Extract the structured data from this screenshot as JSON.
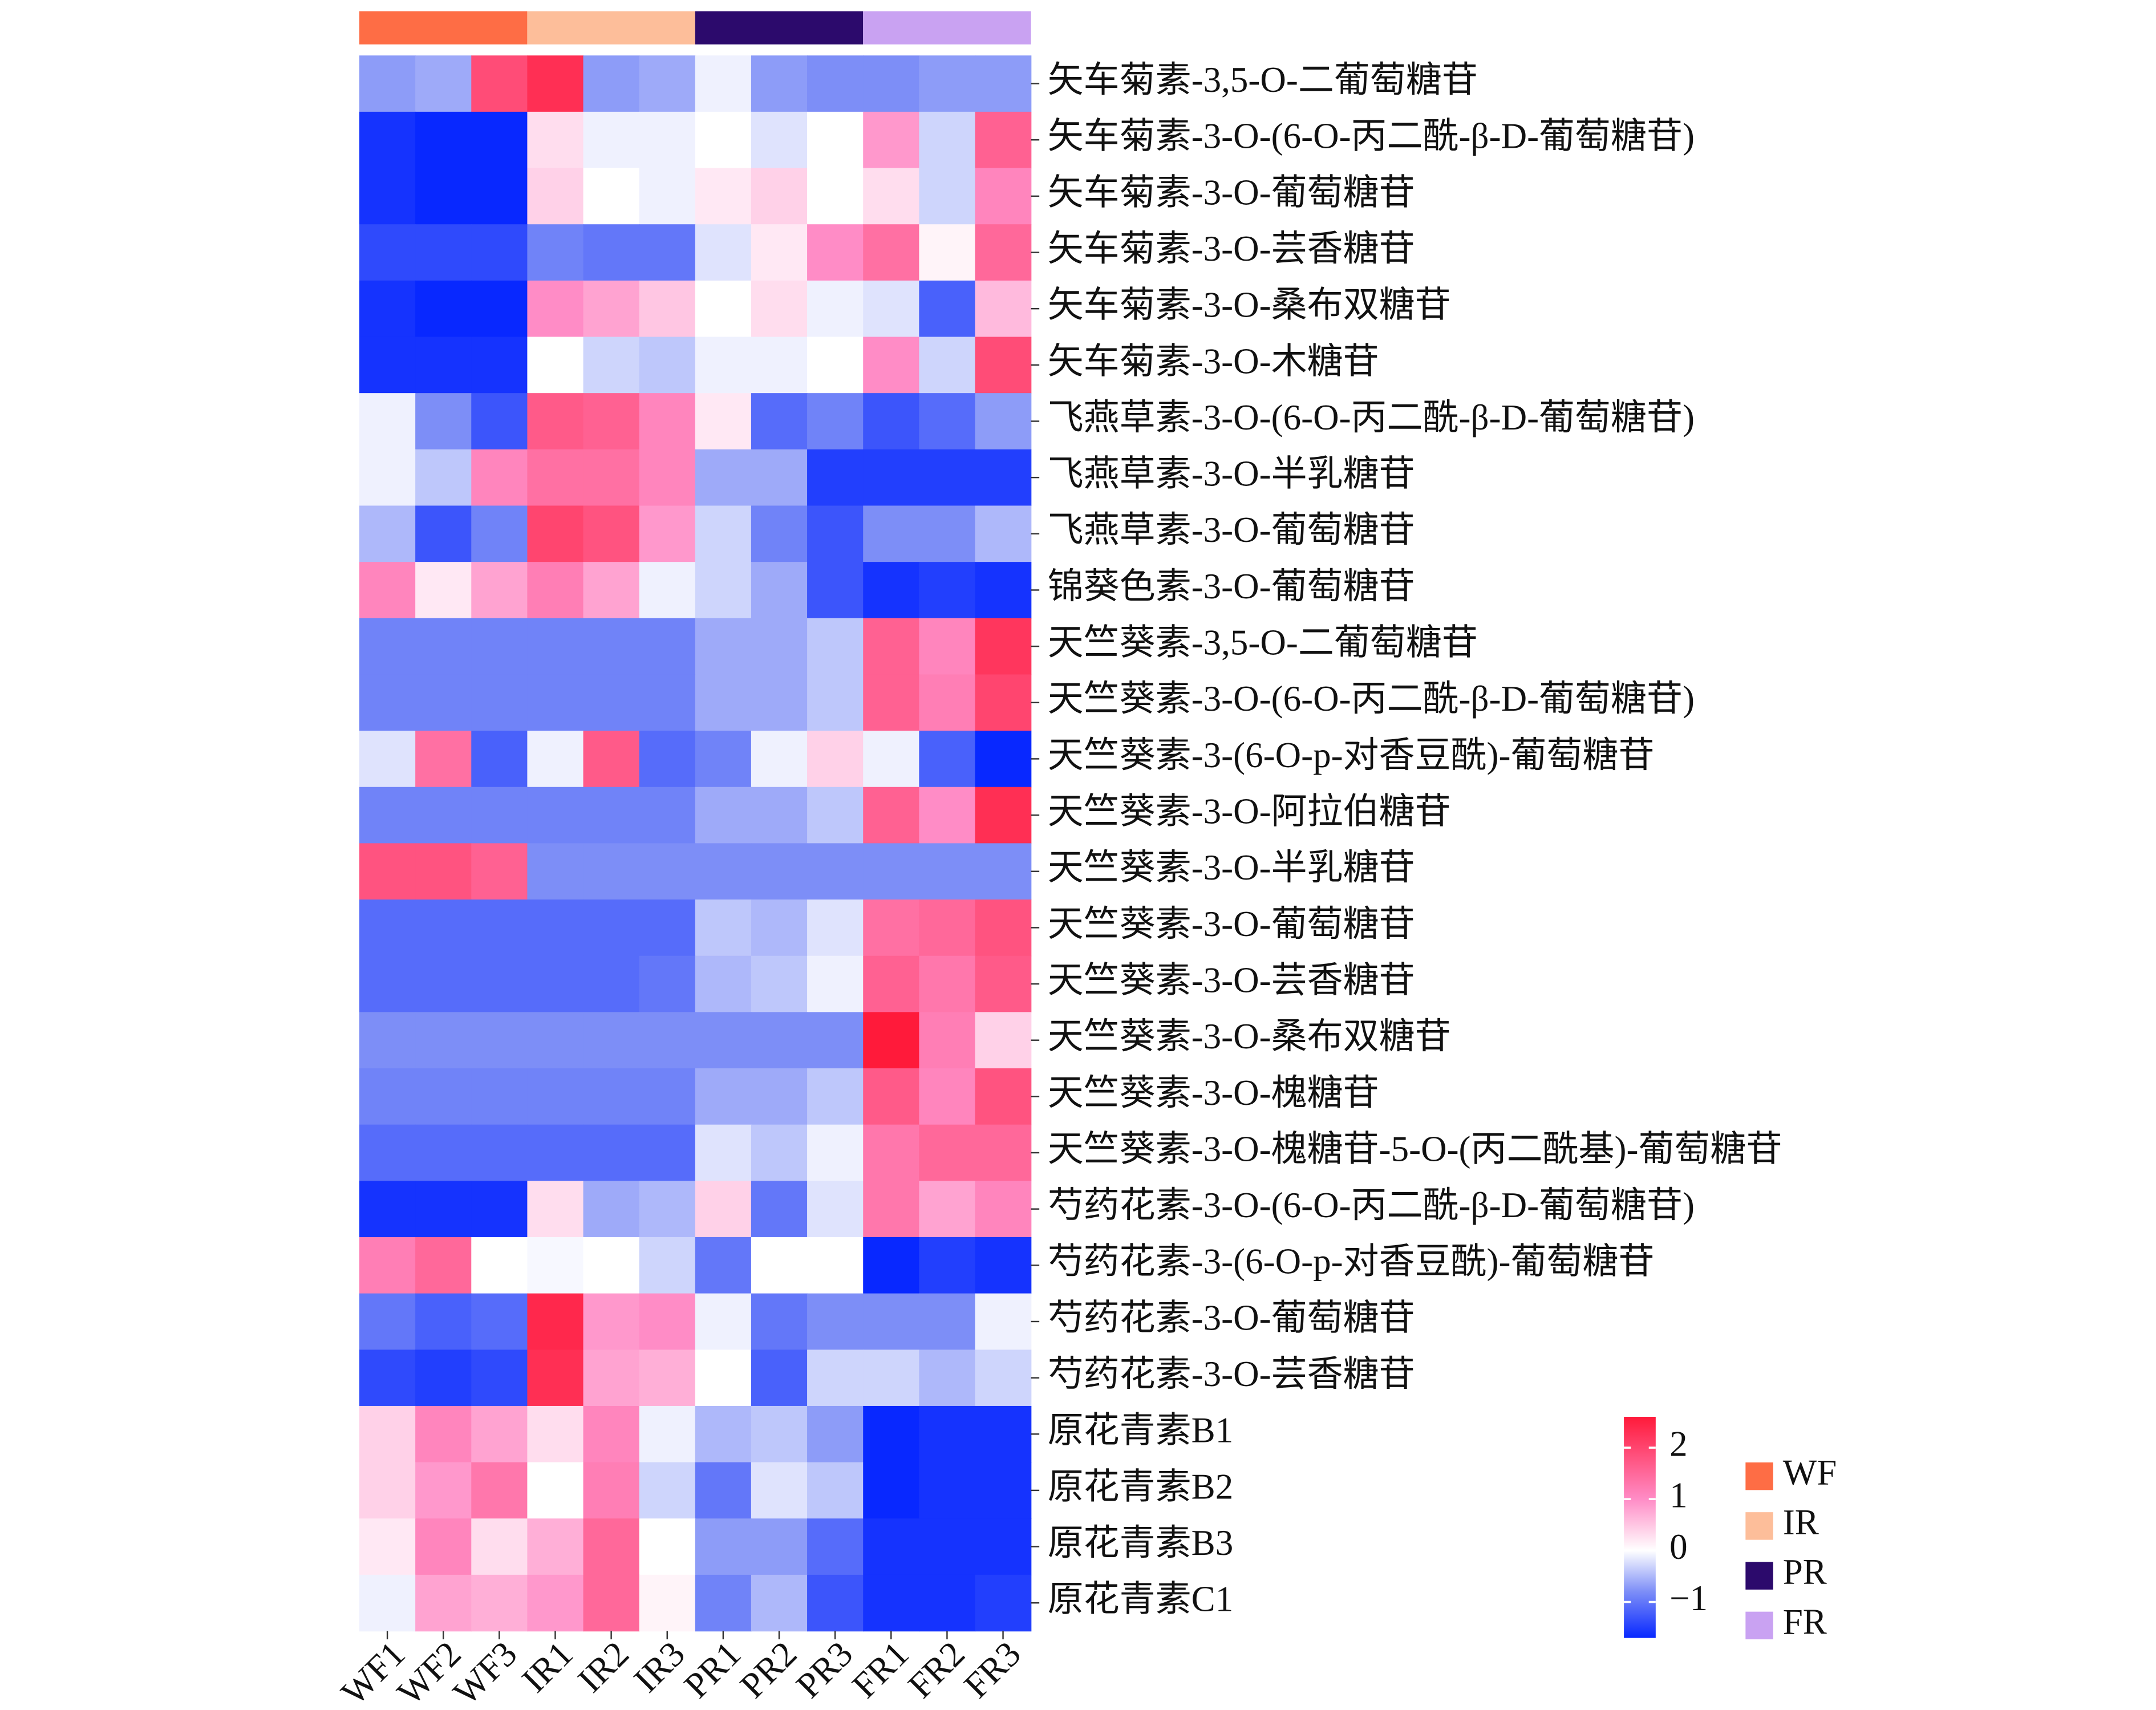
{
  "chart_data": {
    "type": "heatmap",
    "columns": [
      "WF1",
      "WF2",
      "WF3",
      "IR1",
      "IR2",
      "IR3",
      "PR1",
      "PR2",
      "PR3",
      "FR1",
      "FR2",
      "FR3"
    ],
    "rows": [
      "矢车菊素-3,5-O-二葡萄糖苷",
      "矢车菊素-3-O-(6-O-丙二酰-β-D-葡萄糖苷)",
      "矢车菊素-3-O-葡萄糖苷",
      "矢车菊素-3-O-芸香糖苷",
      "矢车菊素-3-O-桑布双糖苷",
      "矢车菊素-3-O-木糖苷",
      "飞燕草素-3-O-(6-O-丙二酰-β-D-葡萄糖苷)",
      "飞燕草素-3-O-半乳糖苷",
      "飞燕草素-3-O-葡萄糖苷",
      "锦葵色素-3-O-葡萄糖苷",
      "天竺葵素-3,5-O-二葡萄糖苷",
      "天竺葵素-3-O-(6-O-丙二酰-β-D-葡萄糖苷)",
      "天竺葵素-3-(6-O-p-对香豆酰)-葡萄糖苷",
      "天竺葵素-3-O-阿拉伯糖苷",
      "天竺葵素-3-O-半乳糖苷",
      "天竺葵素-3-O-葡萄糖苷",
      "天竺葵素-3-O-芸香糖苷",
      "天竺葵素-3-O-桑布双糖苷",
      "天竺葵素-3-O-槐糖苷",
      "天竺葵素-3-O-槐糖苷-5-O-(丙二酰基)-葡萄糖苷",
      "芍药花素-3-O-(6-O-丙二酰-β-D-葡萄糖苷)",
      "芍药花素-3-(6-O-p-对香豆酰)-葡萄糖苷",
      "芍药花素-3-O-葡萄糖苷",
      "芍药花素-3-O-芸香糖苷",
      "原花青素B1",
      "原花青素B2",
      "原花青素B3",
      "原花青素C1"
    ],
    "values": [
      [
        -0.7,
        -0.6,
        1.9,
        2.3,
        -0.7,
        -0.6,
        -0.1,
        -0.7,
        -0.8,
        -0.8,
        -0.7,
        -0.7
      ],
      [
        -1.6,
        -1.7,
        -1.7,
        0.3,
        -0.1,
        -0.1,
        0,
        -0.2,
        0,
        0.9,
        -0.3,
        1.6
      ],
      [
        -1.6,
        -1.7,
        -1.7,
        0.4,
        0,
        -0.1,
        0.2,
        0.4,
        0,
        0.3,
        -0.3,
        1.1
      ],
      [
        -1.4,
        -1.4,
        -1.4,
        -0.9,
        -1.0,
        -1.0,
        -0.2,
        0.2,
        1.0,
        1.4,
        0.1,
        1.5
      ],
      [
        -1.6,
        -1.7,
        -1.7,
        1.0,
        0.8,
        0.5,
        0,
        0.3,
        -0.1,
        -0.2,
        -1.2,
        0.6
      ],
      [
        -1.6,
        -1.6,
        -1.6,
        0,
        -0.3,
        -0.4,
        -0.1,
        -0.1,
        0,
        1.0,
        -0.3,
        1.9
      ],
      [
        -0.1,
        -0.8,
        -1.3,
        1.7,
        1.6,
        1.1,
        0.2,
        -1.1,
        -0.9,
        -1.3,
        -1.1,
        -0.7
      ],
      [
        -0.1,
        -0.4,
        1.1,
        1.4,
        1.4,
        1.1,
        -0.6,
        -0.6,
        -1.5,
        -1.5,
        -1.5,
        -1.5
      ],
      [
        -0.5,
        -1.3,
        -0.9,
        2.0,
        1.8,
        0.9,
        -0.3,
        -0.9,
        -1.3,
        -0.8,
        -0.8,
        -0.5
      ],
      [
        1.1,
        0.2,
        0.8,
        1.2,
        0.8,
        -0.1,
        -0.3,
        -0.6,
        -1.3,
        -1.6,
        -1.5,
        -1.6
      ],
      [
        -0.9,
        -0.9,
        -0.9,
        -0.9,
        -0.9,
        -0.9,
        -0.6,
        -0.6,
        -0.4,
        1.6,
        1.1,
        2.2
      ],
      [
        -0.9,
        -0.9,
        -0.9,
        -0.9,
        -0.9,
        -0.9,
        -0.6,
        -0.6,
        -0.4,
        1.6,
        1.2,
        2.0
      ],
      [
        -0.2,
        1.4,
        -1.2,
        -0.1,
        1.7,
        -1.1,
        -0.9,
        -0.1,
        0.4,
        -0.1,
        -1.2,
        -1.7
      ],
      [
        -0.9,
        -0.9,
        -0.9,
        -0.9,
        -0.9,
        -0.9,
        -0.6,
        -0.6,
        -0.4,
        1.6,
        1.0,
        2.3
      ],
      [
        1.8,
        1.8,
        1.6,
        -0.8,
        -0.8,
        -0.8,
        -0.8,
        -0.8,
        -0.8,
        -0.8,
        -0.8,
        -0.8
      ],
      [
        -1.1,
        -1.1,
        -1.1,
        -1.1,
        -1.1,
        -1.1,
        -0.4,
        -0.5,
        -0.2,
        1.4,
        1.5,
        1.8
      ],
      [
        -1.1,
        -1.1,
        -1.1,
        -1.1,
        -1.1,
        -1.0,
        -0.5,
        -0.4,
        -0.1,
        1.6,
        1.3,
        1.7
      ],
      [
        -0.8,
        -0.8,
        -0.8,
        -0.8,
        -0.8,
        -0.8,
        -0.8,
        -0.8,
        -0.8,
        2.6,
        1.2,
        0.4
      ],
      [
        -0.9,
        -0.9,
        -0.9,
        -0.9,
        -0.9,
        -0.9,
        -0.6,
        -0.6,
        -0.4,
        1.7,
        1.1,
        1.8
      ],
      [
        -1.1,
        -1.1,
        -1.1,
        -1.1,
        -1.1,
        -1.1,
        -0.2,
        -0.4,
        -0.1,
        1.3,
        1.5,
        1.5
      ],
      [
        -1.6,
        -1.6,
        -1.6,
        0.3,
        -0.6,
        -0.5,
        0.4,
        -1.0,
        -0.2,
        1.3,
        0.8,
        1.1
      ],
      [
        1.2,
        1.5,
        0,
        -0.05,
        0,
        -0.3,
        -1.0,
        0,
        0,
        -1.7,
        -1.5,
        -1.6
      ],
      [
        -1.0,
        -1.2,
        -1.1,
        2.4,
        0.9,
        1.0,
        -0.1,
        -1.0,
        -0.8,
        -0.8,
        -0.8,
        -0.1
      ],
      [
        -1.4,
        -1.5,
        -1.4,
        2.3,
        0.8,
        0.7,
        0,
        -1.2,
        -0.3,
        -0.3,
        -0.5,
        -0.3
      ],
      [
        0.4,
        1.1,
        0.8,
        0.3,
        1.1,
        -0.1,
        -0.5,
        -0.4,
        -0.7,
        -1.7,
        -1.6,
        -1.6
      ],
      [
        0.4,
        0.9,
        1.3,
        0,
        1.2,
        -0.3,
        -1.0,
        -0.2,
        -0.4,
        -1.7,
        -1.6,
        -1.6
      ],
      [
        0.2,
        1.1,
        0.3,
        0.7,
        1.5,
        0,
        -0.7,
        -0.7,
        -1.1,
        -1.6,
        -1.6,
        -1.6
      ],
      [
        -0.1,
        0.8,
        0.7,
        0.9,
        1.5,
        0.1,
        -0.9,
        -0.5,
        -1.3,
        -1.6,
        -1.6,
        -1.5
      ]
    ],
    "column_groups": [
      {
        "name": "WF",
        "color": "#fe6d45"
      },
      {
        "name": "IR",
        "color": "#fdbe9a"
      },
      {
        "name": "PR",
        "color": "#2c0a6c"
      },
      {
        "name": "FR",
        "color": "#c9a2f2"
      }
    ],
    "zlim": [
      -1.7,
      2.6
    ],
    "zticks": [
      {
        "value": -1,
        "label": "−1"
      },
      0,
      1,
      2
    ],
    "color_stops": [
      [
        -1.7,
        "#0828ff"
      ],
      [
        -0.8,
        "#7d8ef7"
      ],
      [
        0,
        "#ffffff"
      ],
      [
        1,
        "#ff8cc6"
      ],
      [
        2.6,
        "#ff1a3a"
      ]
    ]
  }
}
